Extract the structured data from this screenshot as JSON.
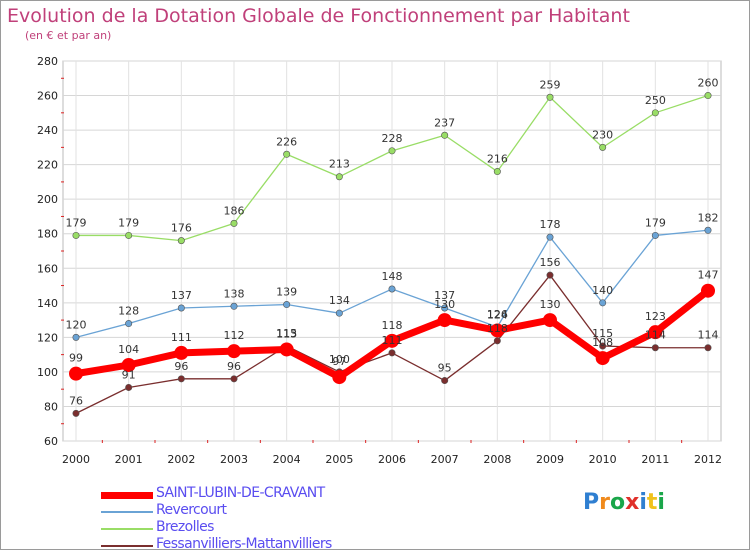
{
  "title": "Evolution de la Dotation Globale de Fonctionnement par Habitant",
  "subtitle": "(en € et par an)",
  "logo": "Proxiti",
  "chart_data": {
    "type": "line",
    "x": [
      "2000",
      "2001",
      "2002",
      "2003",
      "2004",
      "2005",
      "2006",
      "2007",
      "2008",
      "2009",
      "2010",
      "2011",
      "2012"
    ],
    "ylim": [
      60,
      280
    ],
    "yticks": [
      60,
      80,
      100,
      120,
      140,
      160,
      180,
      200,
      220,
      240,
      260,
      280
    ],
    "grid": true,
    "legend_position": "bottom",
    "series": [
      {
        "name": "SAINT-LUBIN-DE-CRAVANT",
        "color": "#ff0000",
        "values": [
          99,
          104,
          111,
          112,
          113,
          97,
          118,
          130,
          124,
          130,
          108,
          123,
          147
        ]
      },
      {
        "name": "Revercourt",
        "color": "#6aa3d5",
        "values": [
          120,
          128,
          137,
          138,
          139,
          134,
          148,
          137,
          126,
          178,
          140,
          179,
          182
        ]
      },
      {
        "name": "Brezolles",
        "color": "#99dd66",
        "values": [
          179,
          179,
          176,
          186,
          226,
          213,
          228,
          237,
          216,
          259,
          230,
          250,
          260
        ]
      },
      {
        "name": "Fessanvilliers-Mattanvilliers",
        "color": "#7a2e2e",
        "values": [
          76,
          91,
          96,
          96,
          115,
          100,
          111,
          95,
          118,
          156,
          115,
          114,
          114
        ]
      }
    ]
  }
}
